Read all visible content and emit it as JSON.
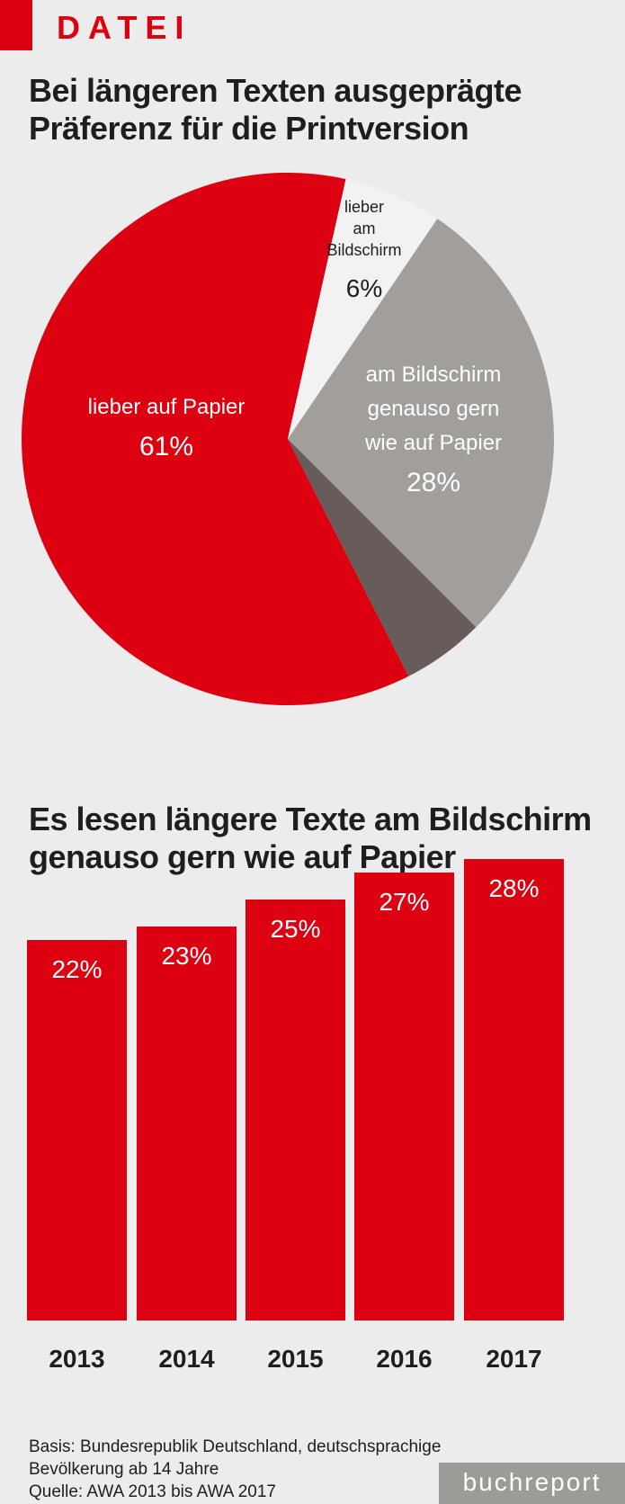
{
  "header": {
    "kicker": "DATEI"
  },
  "brand": "buchreport",
  "notes": [
    "Basis: Bundesrepublik Deutschland, deutschsprachige",
    "Bevölkerung ab 14 Jahre",
    "Quelle: AWA 2013 bis AWA 2017"
  ],
  "chart_data": [
    {
      "type": "pie",
      "title": "Bei längeren Texten ausgeprägte Präferenz für die Printversion",
      "slices": [
        {
          "label_lines": [
            "lieber auf Papier"
          ],
          "value": 61,
          "value_label": "61%",
          "color": "#dd0011",
          "text_color": "#ffffff"
        },
        {
          "label_lines": [
            "lieber",
            "am",
            "Bildschirm"
          ],
          "value": 6,
          "value_label": "6%",
          "color": "#f2f2f2",
          "text_color": "#1e1e1e"
        },
        {
          "label_lines": [
            "am Bildschirm",
            "genauso gern",
            "wie auf Papier"
          ],
          "value": 28,
          "value_label": "28%",
          "color": "#a29e9b",
          "text_color": "#ffffff"
        },
        {
          "label_lines": [],
          "value": 5,
          "value_label": "",
          "color": "#675c59",
          "text_color": "#ffffff"
        }
      ]
    },
    {
      "type": "bar",
      "title": "Es lesen längere Texte am Bildschirm genauso gern wie auf Papier",
      "categories": [
        "2013",
        "2014",
        "2015",
        "2016",
        "2017"
      ],
      "values": [
        22,
        23,
        25,
        27,
        28
      ],
      "value_labels": [
        "22%",
        "23%",
        "25%",
        "27%",
        "28%"
      ],
      "ylim": [
        -6.2,
        28
      ],
      "color": "#dd0011"
    }
  ]
}
